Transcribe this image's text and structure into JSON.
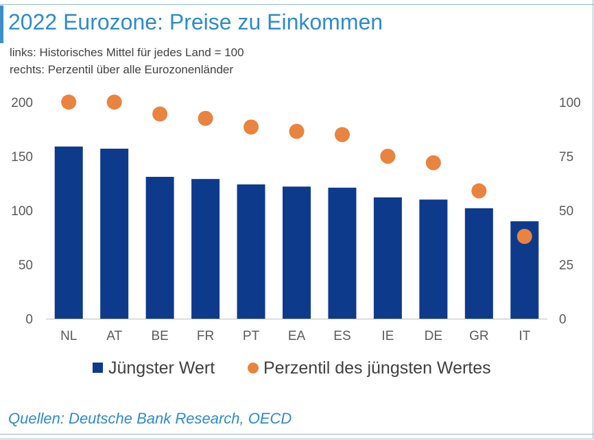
{
  "header": {
    "title": "2022 Eurozone: Preise zu Einkommen",
    "subtitle_line1": "links: Historisches Mittel für jedes Land = 100",
    "subtitle_line2": "rechts: Perzentil über alle Eurozonenländer"
  },
  "footer": {
    "source": "Quellen: Deutsche Bank Research, OECD"
  },
  "colors": {
    "bar": "#0e3a8c",
    "dot": "#e8843f",
    "title": "#2f8acb"
  },
  "chart_data": {
    "type": "bar",
    "categories": [
      "NL",
      "AT",
      "BE",
      "FR",
      "PT",
      "EA",
      "ES",
      "IE",
      "DE",
      "GR",
      "IT"
    ],
    "series": [
      {
        "name": "Jüngster Wert",
        "type": "bar",
        "axis": "left",
        "values": [
          159,
          157,
          131,
          129,
          124,
          122,
          121,
          112,
          110,
          102,
          90
        ]
      },
      {
        "name": "Perzentil des jüngsten Wertes",
        "type": "scatter",
        "axis": "right",
        "values": [
          100,
          100,
          94.5,
          92.5,
          88.5,
          86.5,
          85,
          75,
          72,
          59,
          38
        ]
      }
    ],
    "y_left": {
      "ylim": [
        0,
        200
      ],
      "ticks": [
        "0",
        "50",
        "100",
        "150",
        "200"
      ]
    },
    "y_right": {
      "ylim": [
        0,
        100
      ],
      "ticks": [
        "0",
        "25",
        "50",
        "75",
        "100"
      ]
    },
    "legend": "bottom",
    "grid": false
  }
}
